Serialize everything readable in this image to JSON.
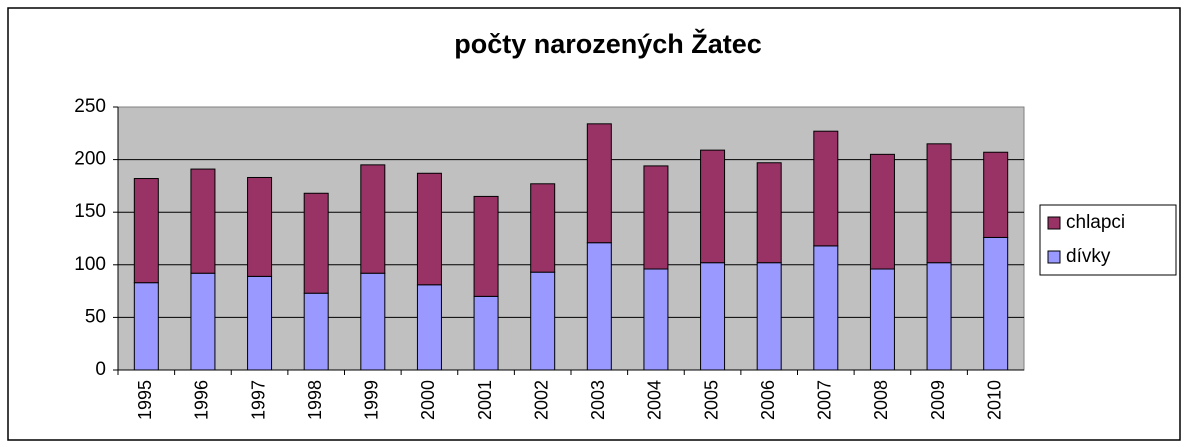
{
  "chart_data": {
    "type": "bar",
    "stacked": true,
    "title": "počty narozených Žatec",
    "categories": [
      "1995",
      "1996",
      "1997",
      "1998",
      "1999",
      "2000",
      "2001",
      "2002",
      "2003",
      "2004",
      "2005",
      "2006",
      "2007",
      "2008",
      "2009",
      "2010"
    ],
    "series": [
      {
        "name": "chlapci",
        "color": "#993366",
        "values": [
          99,
          99,
          94,
          95,
          103,
          106,
          95,
          84,
          113,
          98,
          107,
          95,
          109,
          109,
          113,
          81
        ]
      },
      {
        "name": "dívky",
        "color": "#9999ff",
        "values": [
          83,
          92,
          89,
          73,
          92,
          81,
          70,
          93,
          121,
          96,
          102,
          102,
          118,
          96,
          102,
          126
        ]
      }
    ],
    "ylim": [
      0,
      250
    ],
    "yticks": [
      0,
      50,
      100,
      150,
      200,
      250
    ],
    "grid": true,
    "legend": "right"
  }
}
